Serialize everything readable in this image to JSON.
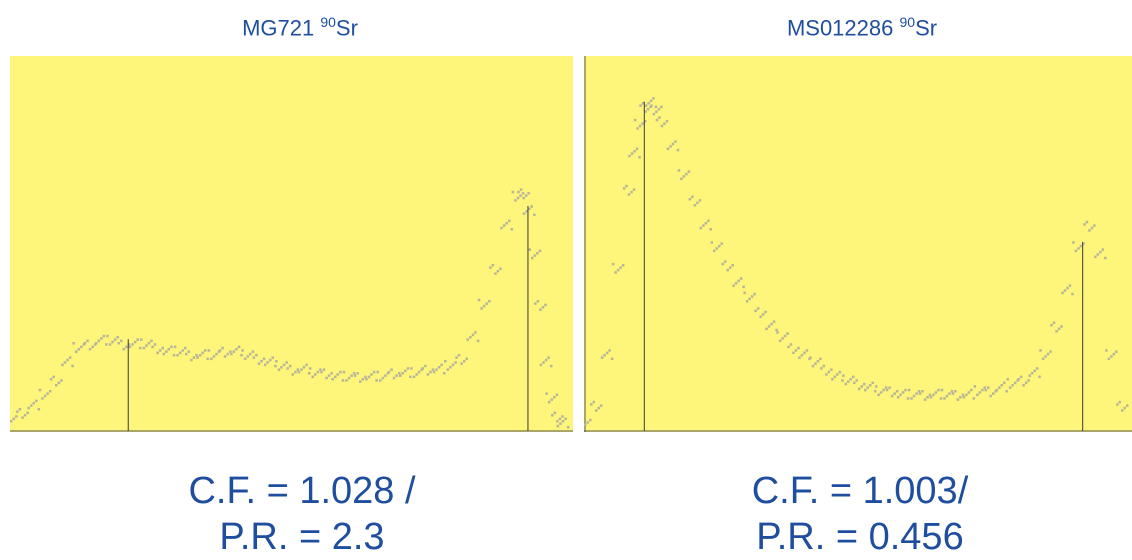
{
  "panels": [
    {
      "title": "MG721",
      "isotope_mass": "90",
      "isotope_symbol": "Sr",
      "cf_text": "C.F. = 1.028 /",
      "pr_text": "P.R. = 2.3"
    },
    {
      "title": "MS012286",
      "isotope_mass": "90",
      "isotope_symbol": "Sr",
      "cf_text": "C.F. = 1.003/",
      "pr_text": "P.R. = 0.456"
    }
  ],
  "colors": {
    "plot_background": "#fdf67a",
    "text": "#1f4e9e",
    "points": "#b9b59a",
    "marker_line": "#3a3a3a"
  },
  "chart_data": [
    {
      "type": "scatter",
      "title": "",
      "xlabel": "",
      "ylabel": "",
      "xlim": [
        0,
        100
      ],
      "ylim": [
        0,
        100
      ],
      "grid": false,
      "series": [
        {
          "x": [
            0,
            2,
            4,
            6,
            8,
            10,
            12,
            14,
            16,
            18,
            20,
            22,
            24,
            26,
            28,
            30,
            32,
            34,
            36,
            38,
            40,
            42,
            44,
            46,
            48,
            50,
            52,
            54,
            56,
            58,
            60,
            62,
            64,
            66,
            68,
            70,
            72,
            74,
            76,
            78,
            80,
            82,
            84,
            86,
            88,
            90,
            91,
            92,
            93,
            94,
            95,
            96,
            97,
            98
          ],
          "y": [
            2,
            4,
            6,
            9,
            13,
            18,
            22,
            23,
            24,
            24,
            23,
            23,
            23,
            22,
            21,
            21,
            20,
            20,
            20,
            21,
            21,
            20,
            19,
            18,
            17,
            16,
            16,
            15,
            15,
            14,
            14,
            14,
            14,
            14,
            15,
            15,
            15,
            16,
            16,
            17,
            19,
            25,
            34,
            44,
            56,
            64,
            65,
            60,
            48,
            34,
            18,
            8,
            3,
            1
          ]
        }
      ],
      "markers_x": [
        21,
        92
      ]
    },
    {
      "type": "scatter",
      "title": "",
      "xlabel": "",
      "ylabel": "",
      "xlim": [
        0,
        100
      ],
      "ylim": [
        0,
        100
      ],
      "grid": false,
      "series": [
        {
          "x": [
            0,
            2,
            4,
            6,
            8,
            9,
            10,
            11,
            12,
            13,
            14,
            16,
            18,
            20,
            22,
            24,
            26,
            28,
            30,
            32,
            34,
            36,
            38,
            40,
            42,
            44,
            46,
            48,
            50,
            52,
            54,
            56,
            58,
            60,
            62,
            64,
            66,
            68,
            70,
            72,
            74,
            76,
            78,
            80,
            82,
            84,
            86,
            88,
            90,
            92,
            94,
            96,
            98
          ],
          "y": [
            1,
            6,
            20,
            44,
            66,
            76,
            84,
            89,
            90,
            88,
            85,
            78,
            70,
            63,
            56,
            50,
            45,
            40,
            36,
            32,
            28,
            25,
            22,
            20,
            18,
            16,
            14,
            13,
            12,
            11,
            10,
            10,
            9,
            9,
            9,
            9,
            9,
            9,
            9,
            10,
            10,
            11,
            12,
            13,
            15,
            20,
            28,
            38,
            50,
            56,
            48,
            20,
            6
          ]
        }
      ],
      "markers_x": [
        11,
        91
      ]
    }
  ]
}
